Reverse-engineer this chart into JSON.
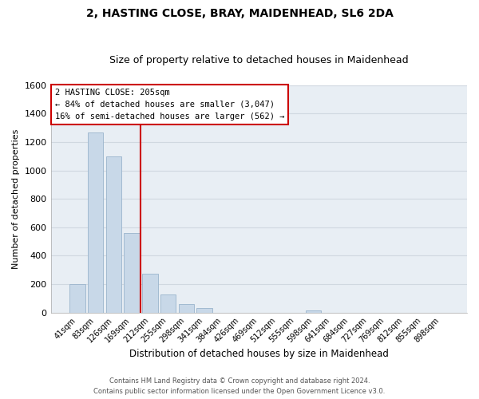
{
  "title": "2, HASTING CLOSE, BRAY, MAIDENHEAD, SL6 2DA",
  "subtitle": "Size of property relative to detached houses in Maidenhead",
  "xlabel": "Distribution of detached houses by size in Maidenhead",
  "ylabel": "Number of detached properties",
  "bar_labels": [
    "41sqm",
    "83sqm",
    "126sqm",
    "169sqm",
    "212sqm",
    "255sqm",
    "298sqm",
    "341sqm",
    "384sqm",
    "426sqm",
    "469sqm",
    "512sqm",
    "555sqm",
    "598sqm",
    "641sqm",
    "684sqm",
    "727sqm",
    "769sqm",
    "812sqm",
    "855sqm",
    "898sqm"
  ],
  "bar_values": [
    200,
    1270,
    1100,
    560,
    275,
    125,
    62,
    30,
    0,
    0,
    0,
    0,
    0,
    15,
    0,
    0,
    0,
    0,
    0,
    0,
    0
  ],
  "bar_color": "#c8d8e8",
  "bar_edge_color": "#9ab4cc",
  "vline_x_index": 4,
  "vline_color": "#cc0000",
  "annotation_line1": "2 HASTING CLOSE: 205sqm",
  "annotation_line2": "← 84% of detached houses are smaller (3,047)",
  "annotation_line3": "16% of semi-detached houses are larger (562) →",
  "annotation_box_color": "white",
  "annotation_box_edge": "#cc0000",
  "ylim": [
    0,
    1600
  ],
  "yticks": [
    0,
    200,
    400,
    600,
    800,
    1000,
    1200,
    1400,
    1600
  ],
  "footer_line1": "Contains HM Land Registry data © Crown copyright and database right 2024.",
  "footer_line2": "Contains public sector information licensed under the Open Government Licence v3.0.",
  "bg_color": "#ffffff",
  "plot_bg_color": "#e8eef4",
  "grid_color": "#d0d8e0",
  "title_fontsize": 10,
  "subtitle_fontsize": 9,
  "xlabel_fontsize": 8.5,
  "ylabel_fontsize": 8
}
